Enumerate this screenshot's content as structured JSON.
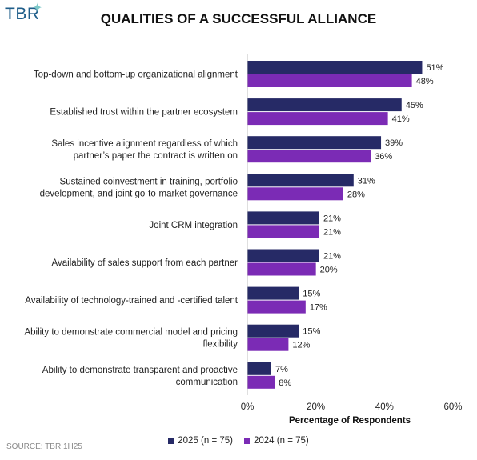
{
  "logo_text": "TBR",
  "chart_data": {
    "type": "bar",
    "orientation": "horizontal",
    "title": "QUALITIES OF A SUCCESSFUL ALLIANCE",
    "xlabel": "Percentage of Respondents",
    "xlim": [
      0,
      60
    ],
    "xticks": [
      "0%",
      "20%",
      "40%",
      "60%"
    ],
    "xtick_values": [
      0,
      20,
      40,
      60
    ],
    "grid": false,
    "legend_position": "bottom",
    "categories": [
      [
        "Top-down and bottom-up organizational alignment"
      ],
      [
        "Established trust within the partner ecosystem"
      ],
      [
        "Sales incentive alignment regardless of which",
        "partner’s paper the contract is written on"
      ],
      [
        "Sustained coinvestment in training, portfolio",
        "development, and joint go-to-market governance"
      ],
      [
        "Joint CRM integration"
      ],
      [
        "Availability of sales support from each partner"
      ],
      [
        "Availability of technology-trained and -certified talent"
      ],
      [
        "Ability to demonstrate commercial model and pricing",
        "flexibility"
      ],
      [
        "Ability to demonstrate transparent and proactive",
        "communication"
      ]
    ],
    "series": [
      {
        "name": "2025 (n = 75)",
        "color": "#262a66",
        "values": [
          51,
          45,
          39,
          31,
          21,
          21,
          15,
          15,
          7
        ],
        "labels": [
          "51%",
          "45%",
          "39%",
          "31%",
          "21%",
          "21%",
          "15%",
          "15%",
          "7%"
        ]
      },
      {
        "name": "2024 (n = 75)",
        "color": "#7b2bb5",
        "values": [
          48,
          41,
          36,
          28,
          21,
          20,
          17,
          12,
          8
        ],
        "labels": [
          "48%",
          "41%",
          "36%",
          "28%",
          "21%",
          "20%",
          "17%",
          "12%",
          "8%"
        ]
      }
    ]
  },
  "source": "SOURCE: TBR 1H25"
}
